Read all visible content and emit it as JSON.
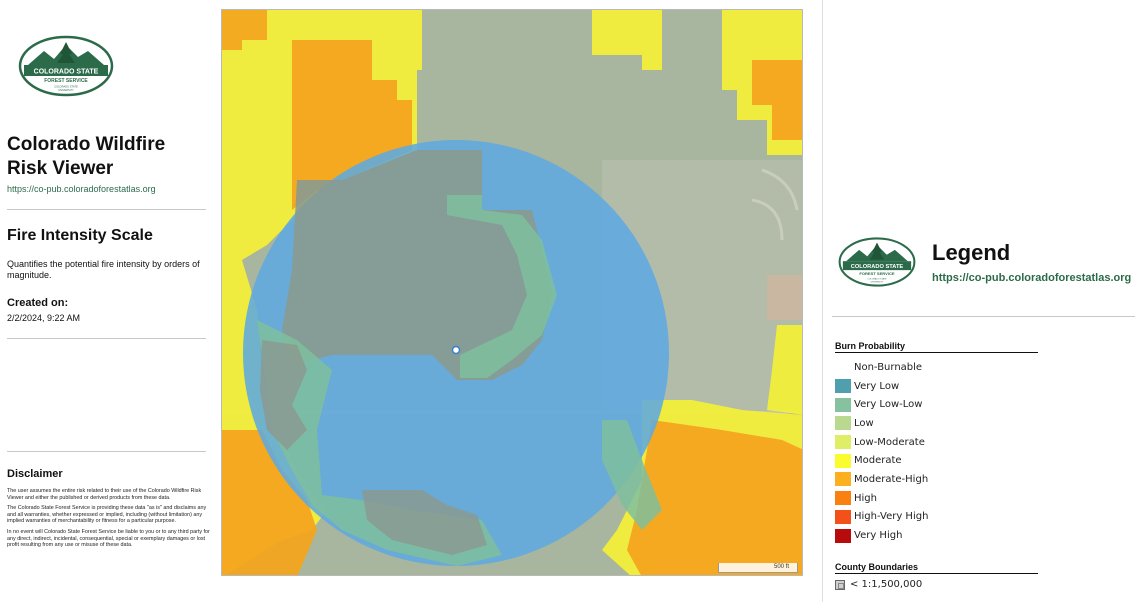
{
  "left": {
    "title": "Colorado Wildfire Risk Viewer",
    "url": "https://co-pub.coloradoforestatlas.org",
    "layer_title": "Fire Intensity Scale",
    "layer_description": "Quantifies the potential fire intensity by orders of magnitude.",
    "created_label": "Created on:",
    "created_value": "2/2/2024, 9:22 AM",
    "disclaimer_title": "Disclaimer",
    "disclaimer_p1": "The user assumes the entire risk related to their use of the Colorado Wildfire Risk Viewer and either the published or derived products from these data.",
    "disclaimer_p2": "The Colorado State Forest Service is providing these data \"as is\" and disclaims any and all warranties, whether expressed or implied, including (without limitation) any implied warranties of merchantability or fitness for a particular purpose.",
    "disclaimer_p3": "In no event will Colorado State Forest Service be liable to you or to any third party for any direct, indirect, incidental, consequential, special or exemplary damages or lost profit resulting from any use or misuse of these data."
  },
  "logo": {
    "line1": "COLORADO STATE",
    "line2": "FOREST SERVICE",
    "line3": "COLORADO STATE",
    "line4": "UNIVERSITY"
  },
  "map": {
    "scale_label": "500 ft"
  },
  "legend": {
    "title": "Legend",
    "url": "https://co-pub.coloradoforestatlas.org",
    "burn_probability_title": "Burn Probability",
    "items": [
      {
        "label": "Non-Burnable",
        "color": ""
      },
      {
        "label": "Very Low",
        "color": "#4f9fae"
      },
      {
        "label": "Very Low-Low",
        "color": "#86c1a0"
      },
      {
        "label": "Low",
        "color": "#b9d98f"
      },
      {
        "label": "Low-Moderate",
        "color": "#dfee66"
      },
      {
        "label": "Moderate",
        "color": "#fbfc2e"
      },
      {
        "label": "Moderate-High",
        "color": "#fcb020"
      },
      {
        "label": "High",
        "color": "#fb8012"
      },
      {
        "label": "High-Very High",
        "color": "#f4501a"
      },
      {
        "label": "Very High",
        "color": "#b80b0b"
      }
    ],
    "county_title": "County Boundaries",
    "county_item": "< 1:1,500,000"
  },
  "colors": {
    "brand_green": "#2c6b4a",
    "moderate": "#f1ef3a",
    "moderate_high": "#f3a51f",
    "very_low_low": "#86c1a0",
    "buffer_circle": "#5da8df"
  }
}
